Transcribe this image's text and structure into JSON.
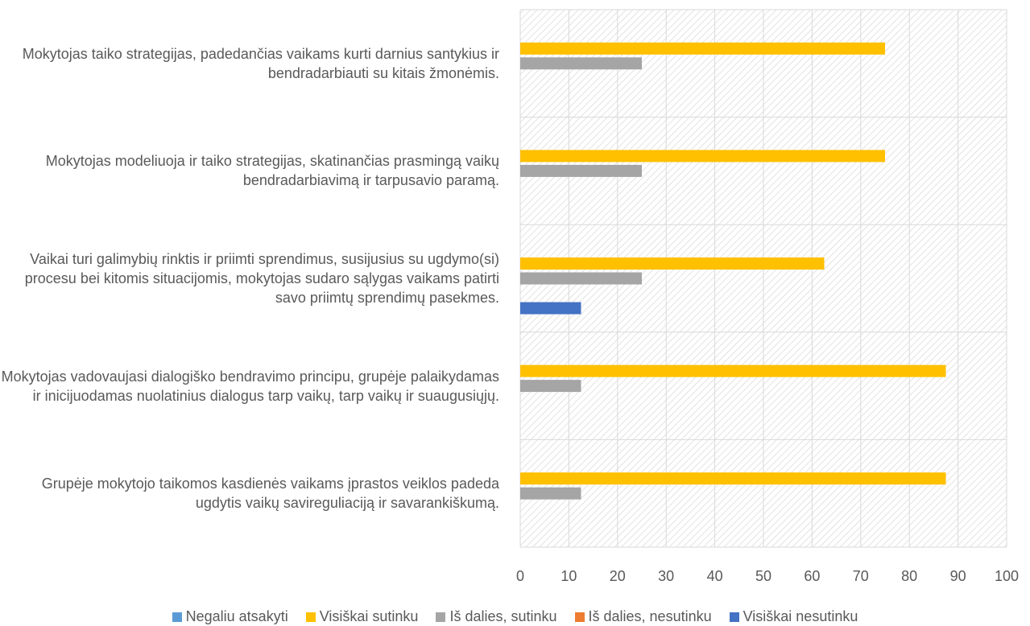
{
  "chart_data": {
    "type": "bar",
    "orientation": "horizontal",
    "categories": [
      "Mokytojas taiko strategijas, padedančias vaikams kurti darnius santykius ir bendradarbiauti su kitais žmonėmis.",
      "Mokytojas modeliuoja ir taiko strategijas, skatinančias prasmingą vaikų bendradarbiavimą ir tarpusavio paramą.",
      "Vaikai turi galimybių rinktis ir priimti sprendimus, susijusius su ugdymo(si) procesu bei kitomis situacijomis, mokytojas sudaro sąlygas vaikams patirti savo priimtų sprendimų pasekmes.",
      "Mokytojas vadovaujasi dialogiško bendravimo principu, grupėje palaikydamas ir inicijuodamas nuolatinius dialogus tarp vaikų, tarp vaikų ir suaugusiųjų.",
      "Grupėje mokytojo taikomos kasdienės vaikams įprastos veiklos padeda ugdytis vaikų savireguliaciją ir savarankiškumą."
    ],
    "series": [
      {
        "name": "Negaliu atsakyti",
        "color": "#5b9bd5",
        "values": [
          0,
          0,
          0,
          0,
          0
        ]
      },
      {
        "name": "Visiškai sutinku",
        "color": "#ffc000",
        "values": [
          75,
          75,
          62.5,
          87.5,
          87.5
        ]
      },
      {
        "name": "Iš dalies, sutinku",
        "color": "#a5a5a5",
        "values": [
          25,
          25,
          25,
          12.5,
          12.5
        ]
      },
      {
        "name": "Iš dalies, nesutinku",
        "color": "#ed7d31",
        "values": [
          0,
          0,
          0,
          0,
          0
        ]
      },
      {
        "name": "Visiškai nesutinku",
        "color": "#4472c4",
        "values": [
          0,
          0,
          12.5,
          0,
          0
        ]
      }
    ],
    "xlim": [
      0,
      100
    ],
    "xticks": [
      0,
      10,
      20,
      30,
      40,
      50,
      60,
      70,
      80,
      90,
      100
    ],
    "grid": true,
    "legend": "bottom"
  }
}
